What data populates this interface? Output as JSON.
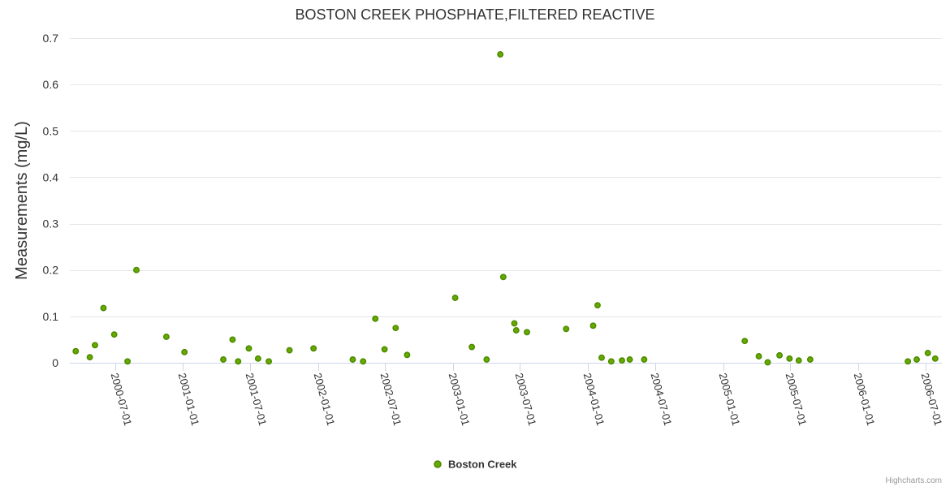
{
  "credits": "Highcharts.com",
  "chart_data": {
    "type": "scatter",
    "title": "BOSTON CREEK PHOSPHATE,FILTERED REACTIVE",
    "xlabel": "",
    "ylabel": "Measurements (mg/L)",
    "ylim": [
      0,
      0.7
    ],
    "yticks": [
      0,
      0.1,
      0.2,
      0.3,
      0.4,
      0.5,
      0.6,
      0.7
    ],
    "ytick_labels": [
      "0",
      "0.1",
      "0.2",
      "0.3",
      "0.4",
      "0.5",
      "0.6",
      "0.7"
    ],
    "xlim": [
      "2000-03-01",
      "2006-08-15"
    ],
    "xticks": [
      "2000-07-01",
      "2001-01-01",
      "2001-07-01",
      "2002-01-01",
      "2002-07-01",
      "2003-01-01",
      "2003-07-01",
      "2004-01-01",
      "2004-07-01",
      "2005-01-01",
      "2005-07-01",
      "2006-01-01",
      "2006-07-01"
    ],
    "grid": true,
    "legend_position": "bottom-center",
    "series": [
      {
        "name": "Boston Creek",
        "color": "#66aa00",
        "stroke": "#4d8a00",
        "points": [
          [
            "2000-03-17",
            0.025
          ],
          [
            "2000-04-24",
            0.012
          ],
          [
            "2000-05-08",
            0.038
          ],
          [
            "2000-05-31",
            0.118
          ],
          [
            "2000-06-29",
            0.061
          ],
          [
            "2000-08-04",
            0.003
          ],
          [
            "2000-08-28",
            0.2
          ],
          [
            "2000-11-17",
            0.056
          ],
          [
            "2001-01-05",
            0.023
          ],
          [
            "2001-04-20",
            0.007
          ],
          [
            "2001-05-15",
            0.05
          ],
          [
            "2001-05-30",
            0.003
          ],
          [
            "2001-06-28",
            0.031
          ],
          [
            "2001-07-23",
            0.009
          ],
          [
            "2001-08-21",
            0.003
          ],
          [
            "2001-10-16",
            0.027
          ],
          [
            "2001-12-20",
            0.031
          ],
          [
            "2002-04-05",
            0.007
          ],
          [
            "2002-05-03",
            0.003
          ],
          [
            "2002-06-05",
            0.095
          ],
          [
            "2002-06-30",
            0.029
          ],
          [
            "2002-07-30",
            0.075
          ],
          [
            "2002-08-30",
            0.017
          ],
          [
            "2003-01-07",
            0.14
          ],
          [
            "2003-02-21",
            0.034
          ],
          [
            "2003-04-02",
            0.007
          ],
          [
            "2003-05-09",
            0.665
          ],
          [
            "2003-05-17",
            0.185
          ],
          [
            "2003-06-16",
            0.085
          ],
          [
            "2003-06-21",
            0.07
          ],
          [
            "2003-07-20",
            0.066
          ],
          [
            "2003-11-03",
            0.073
          ],
          [
            "2004-01-15",
            0.08
          ],
          [
            "2004-01-27",
            0.124
          ],
          [
            "2004-02-07",
            0.011
          ],
          [
            "2004-03-04",
            0.003
          ],
          [
            "2004-04-02",
            0.005
          ],
          [
            "2004-04-23",
            0.007
          ],
          [
            "2004-06-01",
            0.007
          ],
          [
            "2005-02-28",
            0.047
          ],
          [
            "2005-04-07",
            0.014
          ],
          [
            "2005-05-01",
            0.001
          ],
          [
            "2005-06-02",
            0.016
          ],
          [
            "2005-06-29",
            0.009
          ],
          [
            "2005-07-24",
            0.005
          ],
          [
            "2005-08-24",
            0.007
          ],
          [
            "2006-05-15",
            0.003
          ],
          [
            "2006-06-08",
            0.007
          ],
          [
            "2006-07-08",
            0.021
          ],
          [
            "2006-07-28",
            0.009
          ]
        ]
      }
    ]
  }
}
